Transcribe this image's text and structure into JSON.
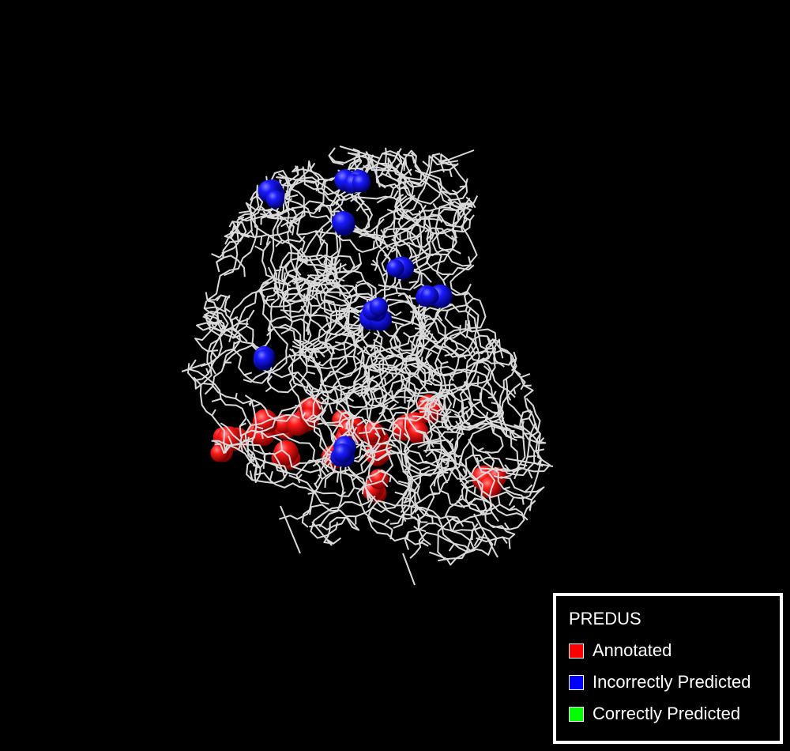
{
  "viewer": {
    "background": "#000000",
    "stick_color": "#d9d9d9",
    "representation": "stick model with sphere-highlighted residues"
  },
  "legend": {
    "title": "PREDUS",
    "entries": [
      {
        "label": "Annotated",
        "color": "#ff0000"
      },
      {
        "label": "Incorrectly Predicted",
        "color": "#0000ff"
      },
      {
        "label": "Correctly Predicted",
        "color": "#00ff00"
      }
    ]
  }
}
